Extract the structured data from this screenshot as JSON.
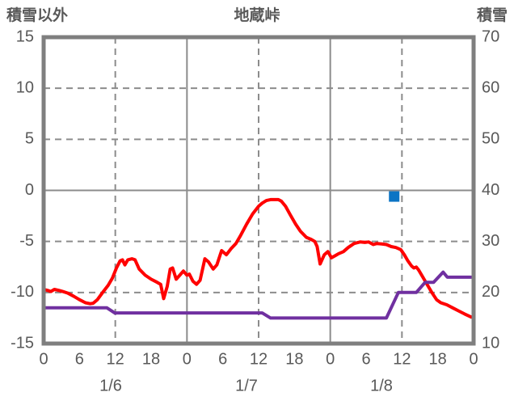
{
  "chart_data": {
    "type": "line",
    "title": "地蔵峠",
    "grid": true,
    "legend": "none",
    "colors": {
      "red_series": "#FF0000",
      "purple_series": "#7030A0",
      "blue_marker": "#0B74C4",
      "border": "#7F7F7F",
      "gridline": "#8C8C8C",
      "text": "#595959"
    },
    "left_axis": {
      "label": "積雪以外",
      "min": -15,
      "max": 15,
      "ticks": [
        15,
        10,
        5,
        0,
        -5,
        -10,
        -15
      ]
    },
    "right_axis": {
      "label": "積雪",
      "min": 10,
      "max": 70,
      "ticks": [
        70,
        60,
        50,
        40,
        30,
        20,
        10
      ]
    },
    "x_axis": {
      "hours_total": 72,
      "hour_ticks": [
        0,
        6,
        12,
        18
      ],
      "end_tick": "0",
      "days": [
        "1/6",
        "1/7",
        "1/8"
      ],
      "solid_gridline_hours": [
        24,
        48
      ],
      "dashed_gridline_hours": [
        12,
        36,
        60
      ]
    },
    "series": [
      {
        "name": "red-line",
        "axis": "left",
        "color": "#FF0000",
        "points": [
          [
            0,
            -9.7
          ],
          [
            0.7,
            -9.8
          ],
          [
            1.2,
            -9.9
          ],
          [
            1.8,
            -9.7
          ],
          [
            2.6,
            -9.8
          ],
          [
            3.2,
            -9.9
          ],
          [
            4,
            -10.05
          ],
          [
            5,
            -10.35
          ],
          [
            6,
            -10.7
          ],
          [
            7,
            -11.0
          ],
          [
            7.8,
            -11.1
          ],
          [
            8.3,
            -11.05
          ],
          [
            9,
            -10.7
          ],
          [
            10,
            -9.9
          ],
          [
            10.8,
            -9.3
          ],
          [
            11.5,
            -8.6
          ],
          [
            12.2,
            -7.6
          ],
          [
            12.8,
            -6.9
          ],
          [
            13.2,
            -6.8
          ],
          [
            13.6,
            -7.3
          ],
          [
            14.1,
            -6.8
          ],
          [
            14.8,
            -6.7
          ],
          [
            15.3,
            -6.8
          ],
          [
            16,
            -7.7
          ],
          [
            17,
            -8.3
          ],
          [
            18,
            -8.7
          ],
          [
            19,
            -9.0
          ],
          [
            19.6,
            -9.2
          ],
          [
            20.1,
            -10.6
          ],
          [
            20.7,
            -9.4
          ],
          [
            21.2,
            -7.7
          ],
          [
            21.6,
            -7.6
          ],
          [
            22.2,
            -8.7
          ],
          [
            22.8,
            -8.3
          ],
          [
            23.4,
            -7.9
          ],
          [
            24,
            -8.3
          ],
          [
            24.4,
            -8.2
          ],
          [
            25,
            -8.9
          ],
          [
            25.6,
            -9.2
          ],
          [
            26.2,
            -8.8
          ],
          [
            27,
            -6.7
          ],
          [
            27.6,
            -7.0
          ],
          [
            28.4,
            -7.7
          ],
          [
            29,
            -7.3
          ],
          [
            29.8,
            -5.9
          ],
          [
            30.6,
            -6.3
          ],
          [
            31.4,
            -5.7
          ],
          [
            32.2,
            -5.2
          ],
          [
            33,
            -4.4
          ],
          [
            34,
            -3.3
          ],
          [
            35,
            -2.3
          ],
          [
            36,
            -1.55
          ],
          [
            36.6,
            -1.25
          ],
          [
            37.3,
            -1.0
          ],
          [
            38,
            -0.9
          ],
          [
            39.3,
            -0.9
          ],
          [
            39.8,
            -1.05
          ],
          [
            40.5,
            -1.55
          ],
          [
            41.3,
            -2.4
          ],
          [
            42.2,
            -3.3
          ],
          [
            43,
            -4.0
          ],
          [
            44,
            -4.6
          ],
          [
            44.8,
            -4.8
          ],
          [
            45.4,
            -5.0
          ],
          [
            45.8,
            -5.5
          ],
          [
            46.3,
            -7.2
          ],
          [
            47,
            -6.3
          ],
          [
            47.6,
            -6.0
          ],
          [
            48.2,
            -6.6
          ],
          [
            48.8,
            -6.4
          ],
          [
            49.4,
            -6.2
          ],
          [
            50.2,
            -6.0
          ],
          [
            51,
            -5.6
          ],
          [
            52,
            -5.2
          ],
          [
            53,
            -5.05
          ],
          [
            53.8,
            -5.1
          ],
          [
            54.4,
            -5.05
          ],
          [
            55.2,
            -5.3
          ],
          [
            55.8,
            -5.2
          ],
          [
            56.6,
            -5.25
          ],
          [
            57.4,
            -5.3
          ],
          [
            58.2,
            -5.5
          ],
          [
            59,
            -5.6
          ],
          [
            59.8,
            -5.8
          ],
          [
            60.4,
            -6.3
          ],
          [
            61,
            -6.9
          ],
          [
            61.6,
            -7.4
          ],
          [
            62,
            -7.6
          ],
          [
            62.4,
            -7.5
          ],
          [
            62.8,
            -7.8
          ],
          [
            63.4,
            -8.4
          ],
          [
            64.2,
            -9.2
          ],
          [
            65,
            -10.0
          ],
          [
            65.8,
            -10.7
          ],
          [
            66.5,
            -11.0
          ],
          [
            67.5,
            -11.2
          ],
          [
            68.5,
            -11.5
          ],
          [
            69.5,
            -11.8
          ],
          [
            70.5,
            -12.1
          ],
          [
            71.6,
            -12.4
          ]
        ]
      },
      {
        "name": "purple-line",
        "axis": "right",
        "color": "#7030A0",
        "points": [
          [
            0,
            17
          ],
          [
            10.6,
            17
          ],
          [
            11.9,
            16
          ],
          [
            36.6,
            16
          ],
          [
            38,
            15
          ],
          [
            57.4,
            15
          ],
          [
            59.4,
            20
          ],
          [
            62.4,
            20
          ],
          [
            63.9,
            22
          ],
          [
            65.3,
            22
          ],
          [
            66.9,
            24
          ],
          [
            67.6,
            23
          ],
          [
            71.6,
            23
          ]
        ]
      },
      {
        "name": "blue-square-marker",
        "axis": "right",
        "color": "#0B74C4",
        "marker": "square",
        "points": [
          [
            58.7,
            38.8
          ]
        ]
      }
    ]
  }
}
